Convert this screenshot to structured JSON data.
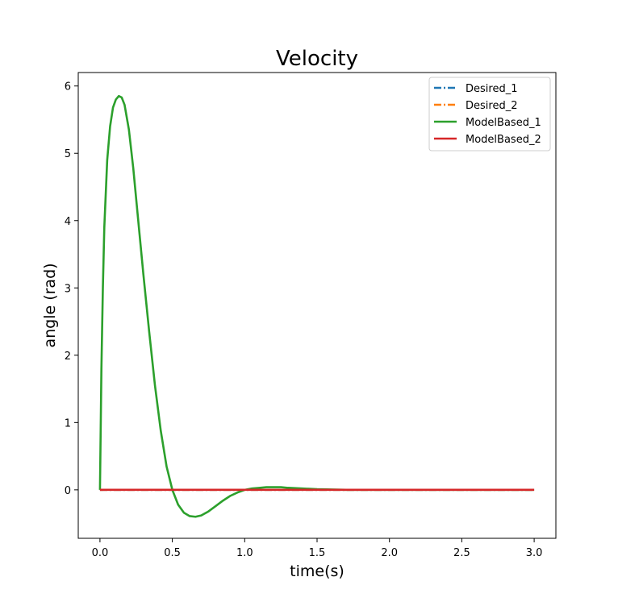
{
  "chart_data": {
    "type": "line",
    "title": "Velocity",
    "xlabel": "time(s)",
    "ylabel": "angle (rad)",
    "xlim": [
      -0.15,
      3.15
    ],
    "ylim": [
      -0.72,
      6.2
    ],
    "xticks": [
      0.0,
      0.5,
      1.0,
      1.5,
      2.0,
      2.5,
      3.0
    ],
    "xtick_labels": [
      "0.0",
      "0.5",
      "1.0",
      "1.5",
      "2.0",
      "2.5",
      "3.0"
    ],
    "yticks": [
      0,
      1,
      2,
      3,
      4,
      5,
      6
    ],
    "ytick_labels": [
      "0",
      "1",
      "2",
      "3",
      "4",
      "5",
      "6"
    ],
    "grid": false,
    "legend_position": "top-right",
    "series": [
      {
        "name": "Desired_1",
        "color": "#1f77b4",
        "style": "dashdot",
        "x": [
          0,
          3.0
        ],
        "y": [
          0,
          0
        ]
      },
      {
        "name": "Desired_2",
        "color": "#ff7f0e",
        "style": "dashdot",
        "x": [
          0,
          3.0
        ],
        "y": [
          0,
          0
        ]
      },
      {
        "name": "ModelBased_1",
        "color": "#2ca02c",
        "style": "solid",
        "x": [
          0,
          0.01,
          0.02,
          0.03,
          0.05,
          0.07,
          0.09,
          0.11,
          0.13,
          0.15,
          0.17,
          0.2,
          0.23,
          0.26,
          0.3,
          0.34,
          0.38,
          0.42,
          0.46,
          0.5,
          0.54,
          0.58,
          0.62,
          0.66,
          0.7,
          0.75,
          0.8,
          0.85,
          0.9,
          0.95,
          1.0,
          1.05,
          1.1,
          1.15,
          1.2,
          1.25,
          1.3,
          1.4,
          1.5,
          1.7,
          2.0,
          2.5,
          3.0
        ],
        "y": [
          0,
          1.8,
          3.0,
          3.9,
          4.9,
          5.4,
          5.68,
          5.8,
          5.85,
          5.83,
          5.72,
          5.35,
          4.78,
          4.1,
          3.2,
          2.35,
          1.55,
          0.88,
          0.35,
          0.0,
          -0.22,
          -0.34,
          -0.39,
          -0.4,
          -0.38,
          -0.32,
          -0.24,
          -0.16,
          -0.09,
          -0.04,
          0.0,
          0.02,
          0.03,
          0.04,
          0.04,
          0.04,
          0.03,
          0.02,
          0.01,
          0.0,
          0.0,
          0.0,
          0.0
        ]
      },
      {
        "name": "ModelBased_2",
        "color": "#d62728",
        "style": "solid",
        "x": [
          0,
          3.0
        ],
        "y": [
          0,
          0
        ]
      }
    ]
  }
}
